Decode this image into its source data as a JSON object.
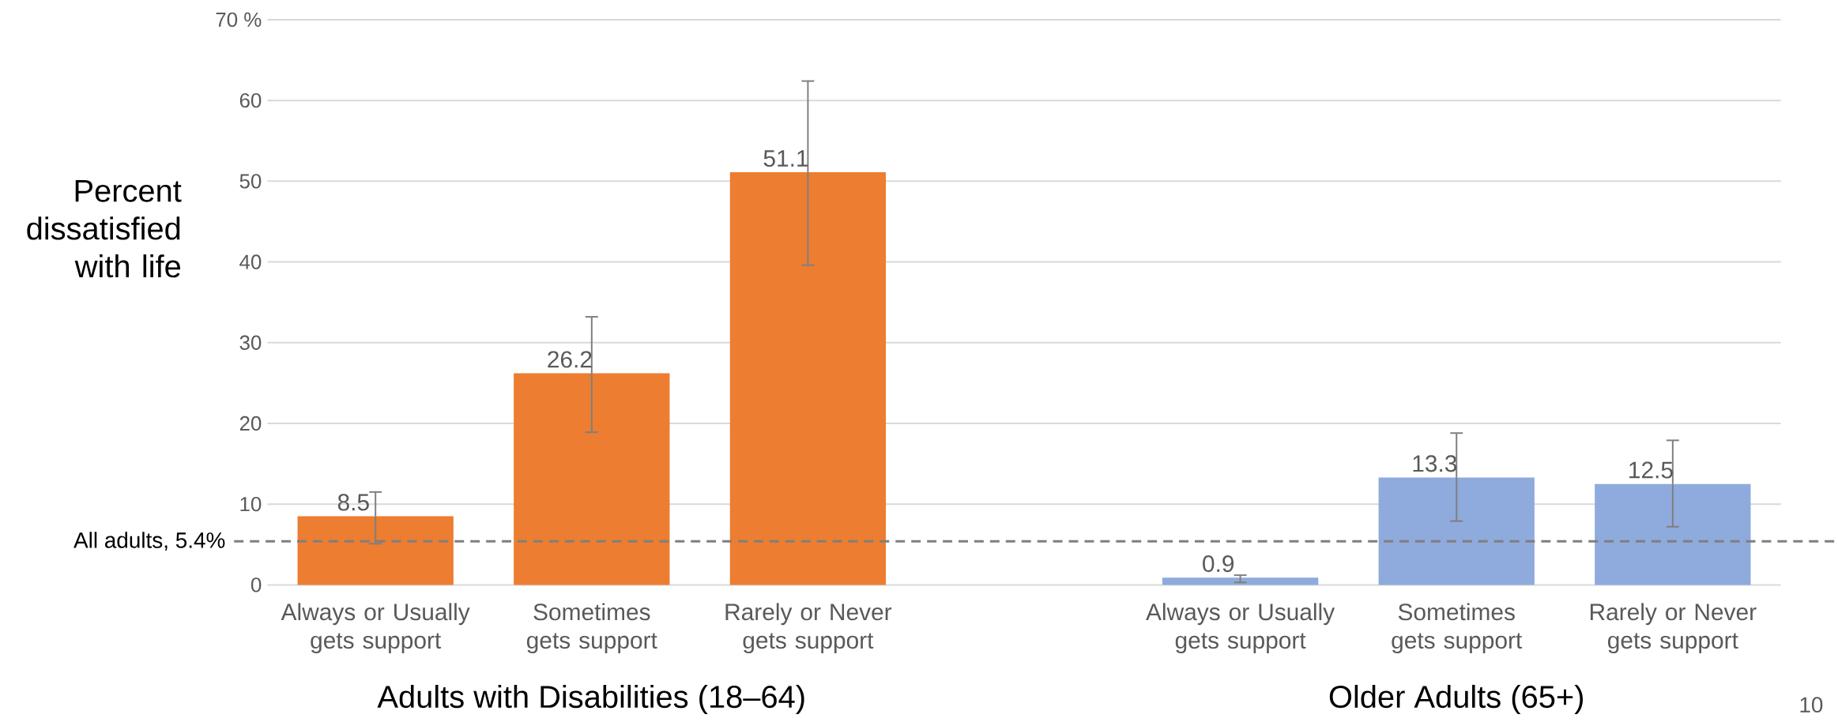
{
  "chart_data": {
    "type": "bar",
    "ylabel": "Percent dissatisfied with life",
    "categories": [
      "Always or Usually gets support",
      "Sometimes gets support",
      "Rarely or Never gets support",
      null,
      "Always or Usually gets support",
      "Sometimes gets support",
      "Rarely or Never gets support"
    ],
    "series": [
      {
        "color": "#ed7d31",
        "values": [
          8.5,
          26.2,
          51.1,
          null,
          null,
          null,
          null
        ],
        "errors": [
          [
            5.1,
            11.5
          ],
          [
            18.9,
            33.2
          ],
          [
            39.6,
            62.4
          ],
          null,
          null,
          null,
          null
        ]
      },
      {
        "color": "#8faadc",
        "values": [
          null,
          null,
          null,
          null,
          0.9,
          13.3,
          12.5
        ],
        "errors": [
          null,
          null,
          null,
          null,
          [
            0.3,
            1.2
          ],
          [
            7.9,
            18.8
          ],
          [
            7.2,
            17.9
          ]
        ]
      }
    ],
    "ylim": [
      0,
      70
    ],
    "yticks": [
      0,
      10,
      20,
      30,
      40,
      50,
      60,
      {
        "value": 70,
        "label": "70 %"
      }
    ],
    "grid": "y",
    "data_labels": true,
    "ref_lines": [
      {
        "axis": "y",
        "value": 5.4,
        "label": "All adults, 5.4%",
        "color": "#7f7f7f",
        "line_style": "dashed"
      }
    ],
    "annotations": [
      "Adults with Disabilities (18–64)",
      "Older Adults (65+)",
      "10"
    ]
  }
}
